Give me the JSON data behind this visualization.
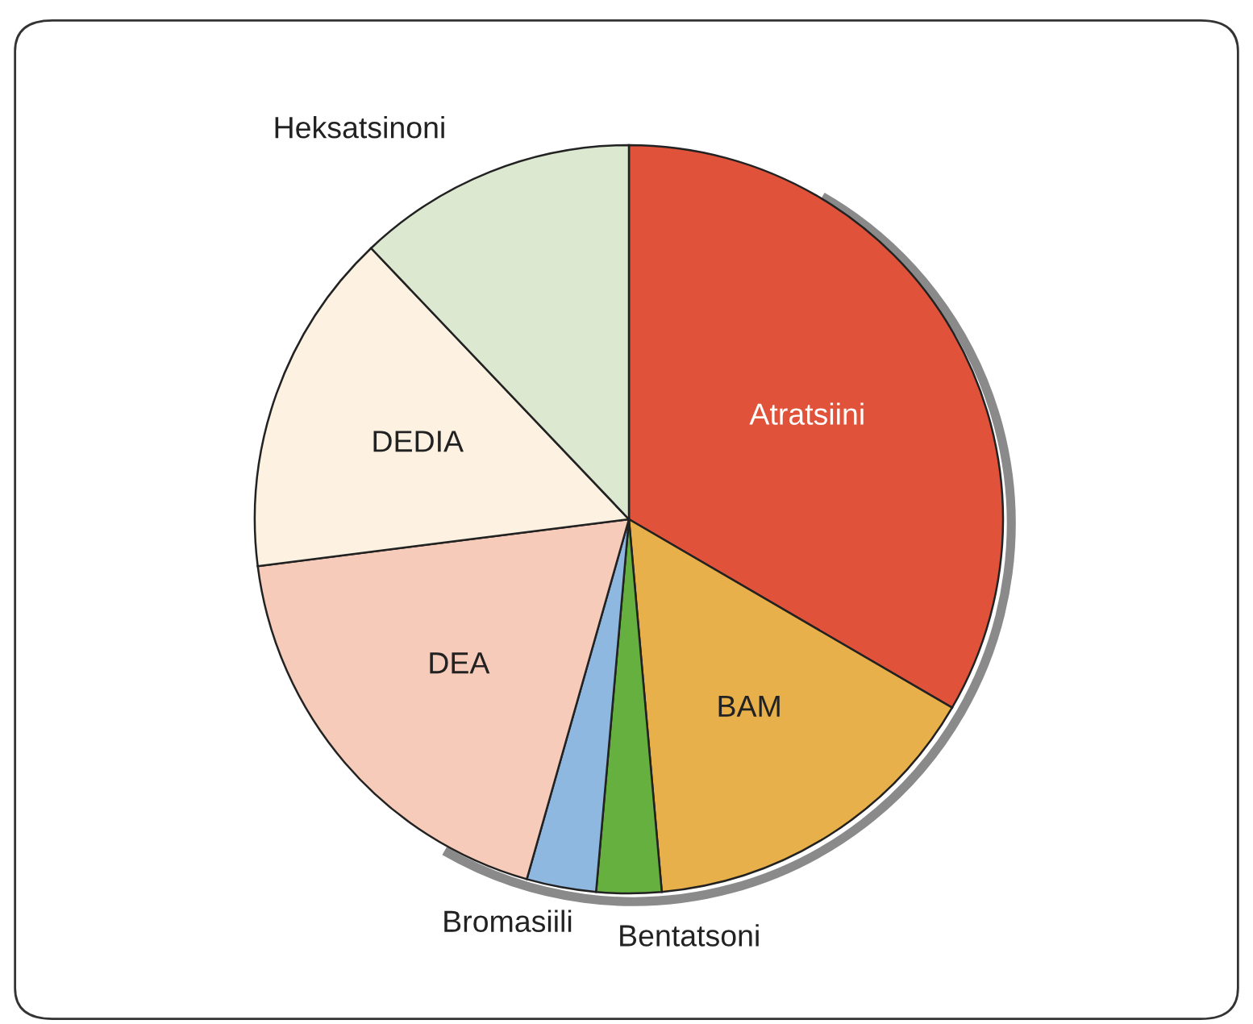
{
  "chart_data": {
    "type": "pie",
    "categories": [
      "Atratsiini",
      "BAM",
      "Bentatsoni",
      "Bromasiili",
      "DEA",
      "DEDIA",
      "Heksatsinoni"
    ],
    "values": [
      33.4,
      15.2,
      2.8,
      3.0,
      18.6,
      14.9,
      12.1
    ],
    "colors": [
      "#e0533a",
      "#e8b04a",
      "#66b040",
      "#8fb8e0",
      "#f6cbb9",
      "#fdf2e2",
      "#dce8d0"
    ]
  }
}
